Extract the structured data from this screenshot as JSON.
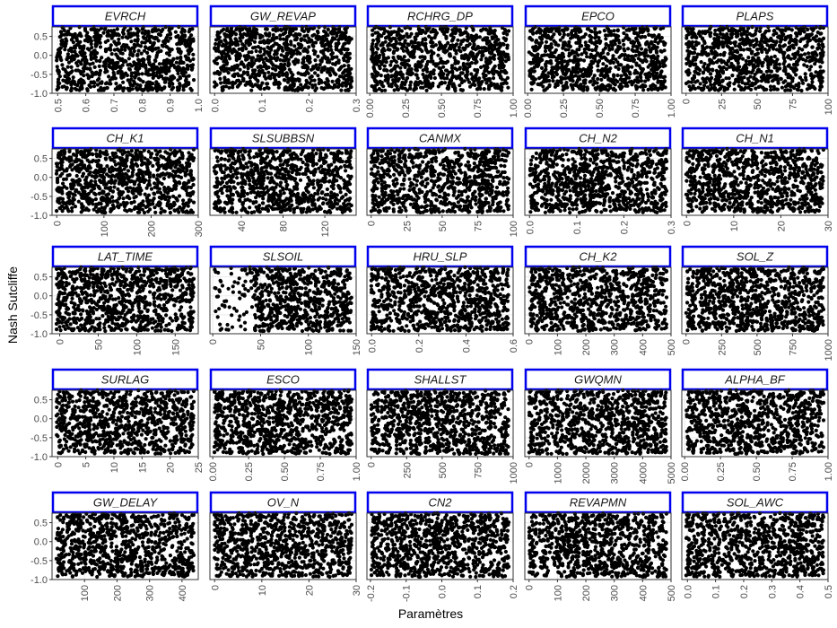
{
  "axis_titles": {
    "y": "Nash Sutcliffe",
    "x": "Paramètres"
  },
  "colors": {
    "strip_border": "#0000ee",
    "points": "#000000",
    "panel_border": "#333333",
    "grid": "#ebebeb",
    "tick_text": "#4d4d4d"
  },
  "chart_data": {
    "type": "scatter",
    "layout": "facet grid, 5 rows x 5 columns",
    "ylim": [
      -1.0,
      0.75
    ],
    "y_ticks": [
      0.5,
      0.0,
      -0.5,
      -1.0
    ],
    "y_tick_labels": [
      "0.5",
      "0.0",
      "-0.5",
      "-1.0"
    ],
    "grid": true,
    "point_color": "#000000",
    "series_note_points": "dense uniform cloud of points spanning each parameter range with Nash Sutcliffe values between about -0.95 and 0.75",
    "panels": [
      {
        "name": "EVRCH",
        "xlim": [
          0.48,
          1.0
        ],
        "x_ticks": [
          0.5,
          0.6,
          0.7,
          0.8,
          0.9,
          1.0
        ],
        "x_tick_labels": [
          "0.5",
          "0.6",
          "0.7",
          "0.8",
          "0.9",
          "1.0"
        ]
      },
      {
        "name": "GW_REVAP",
        "xlim": [
          -0.01,
          0.3
        ],
        "x_ticks": [
          0.0,
          0.1,
          0.2,
          0.3
        ],
        "x_tick_labels": [
          "0.0",
          "0.1",
          "0.2",
          "0.3"
        ]
      },
      {
        "name": "RCHRG_DP",
        "xlim": [
          -0.02,
          1.0
        ],
        "x_ticks": [
          0.0,
          0.25,
          0.5,
          0.75,
          1.0
        ],
        "x_tick_labels": [
          "0.00",
          "0.25",
          "0.50",
          "0.75",
          "1.00"
        ]
      },
      {
        "name": "EPCO",
        "xlim": [
          -0.02,
          1.0
        ],
        "x_ticks": [
          0.0,
          0.25,
          0.5,
          0.75,
          1.0
        ],
        "x_tick_labels": [
          "0.00",
          "0.25",
          "0.50",
          "0.75",
          "1.00"
        ]
      },
      {
        "name": "PLAPS",
        "xlim": [
          -3,
          100
        ],
        "x_ticks": [
          0,
          25,
          50,
          75,
          100
        ],
        "x_tick_labels": [
          "0",
          "25",
          "50",
          "75",
          "100"
        ]
      },
      {
        "name": "CH_K1",
        "xlim": [
          -10,
          300
        ],
        "x_ticks": [
          0,
          100,
          200,
          300
        ],
        "x_tick_labels": [
          "0",
          "100",
          "200",
          "300"
        ]
      },
      {
        "name": "SLSUBBSN",
        "xlim": [
          10,
          150
        ],
        "x_ticks": [
          40,
          80,
          120
        ],
        "x_tick_labels": [
          "40",
          "80",
          "120"
        ]
      },
      {
        "name": "CANMX",
        "xlim": [
          -3,
          100
        ],
        "x_ticks": [
          0,
          25,
          50,
          75,
          100
        ],
        "x_tick_labels": [
          "0",
          "25",
          "50",
          "75",
          "100"
        ]
      },
      {
        "name": "CH_N2",
        "xlim": [
          -0.01,
          0.3
        ],
        "x_ticks": [
          0.0,
          0.1,
          0.2,
          0.3
        ],
        "x_tick_labels": [
          "0.0",
          "0.1",
          "0.2",
          "0.3"
        ]
      },
      {
        "name": "CH_N1",
        "xlim": [
          -1,
          30
        ],
        "x_ticks": [
          0,
          10,
          20,
          30
        ],
        "x_tick_labels": [
          "0",
          "10",
          "20",
          "30"
        ]
      },
      {
        "name": "LAT_TIME",
        "xlim": [
          -10,
          180
        ],
        "x_ticks": [
          0,
          50,
          100,
          150
        ],
        "x_tick_labels": [
          "0",
          "50",
          "100",
          "150"
        ]
      },
      {
        "name": "SLSOIL",
        "xlim": [
          -3,
          150
        ],
        "x_ticks": [
          0,
          50,
          100,
          150
        ],
        "x_tick_labels": [
          "0",
          "50",
          "100",
          "150"
        ]
      },
      {
        "name": "HRU_SLP",
        "xlim": [
          -0.02,
          0.6
        ],
        "x_ticks": [
          0.0,
          0.2,
          0.4,
          0.6
        ],
        "x_tick_labels": [
          "0.0",
          "0.2",
          "0.4",
          "0.6"
        ]
      },
      {
        "name": "CH_K2",
        "xlim": [
          -15,
          500
        ],
        "x_ticks": [
          0,
          100,
          200,
          300,
          400,
          500
        ],
        "x_tick_labels": [
          "0",
          "100",
          "200",
          "300",
          "400",
          "500"
        ]
      },
      {
        "name": "SOL_Z",
        "xlim": [
          -30,
          1000
        ],
        "x_ticks": [
          0,
          250,
          500,
          750,
          1000
        ],
        "x_tick_labels": [
          "0",
          "250",
          "500",
          "750",
          "1000"
        ]
      },
      {
        "name": "SURLAG",
        "xlim": [
          -1,
          25
        ],
        "x_ticks": [
          0,
          5,
          10,
          15,
          20,
          25
        ],
        "x_tick_labels": [
          "0",
          "5",
          "10",
          "15",
          "20",
          "25"
        ]
      },
      {
        "name": "ESCO",
        "xlim": [
          -0.02,
          1.0
        ],
        "x_ticks": [
          0.0,
          0.25,
          0.5,
          0.75,
          1.0
        ],
        "x_tick_labels": [
          "0.00",
          "0.25",
          "0.50",
          "0.75",
          "1.00"
        ]
      },
      {
        "name": "SHALLST",
        "xlim": [
          -30,
          1000
        ],
        "x_ticks": [
          0,
          250,
          500,
          750,
          1000
        ],
        "x_tick_labels": [
          "0",
          "250",
          "500",
          "750",
          "1000"
        ]
      },
      {
        "name": "GWQMN",
        "xlim": [
          -150,
          5000
        ],
        "x_ticks": [
          0,
          1000,
          2000,
          3000,
          4000,
          5000
        ],
        "x_tick_labels": [
          "0",
          "1000",
          "2000",
          "3000",
          "4000",
          "5000"
        ]
      },
      {
        "name": "ALPHA_BF",
        "xlim": [
          -0.02,
          1.0
        ],
        "x_ticks": [
          0.0,
          0.25,
          0.5,
          0.75,
          1.0
        ],
        "x_tick_labels": [
          "0.00",
          "0.25",
          "0.50",
          "0.75",
          "1.00"
        ]
      },
      {
        "name": "GW_DELAY",
        "xlim": [
          0,
          450
        ],
        "x_ticks": [
          100,
          200,
          300,
          400
        ],
        "x_tick_labels": [
          "100",
          "200",
          "300",
          "400"
        ]
      },
      {
        "name": "OV_N",
        "xlim": [
          -1,
          30
        ],
        "x_ticks": [
          0,
          10,
          20,
          30
        ],
        "x_tick_labels": [
          "0",
          "10",
          "20",
          "30"
        ]
      },
      {
        "name": "CN2",
        "xlim": [
          -0.21,
          0.2
        ],
        "x_ticks": [
          -0.2,
          -0.1,
          0.0,
          0.1,
          0.2
        ],
        "x_tick_labels": [
          "-0.2",
          "-0.1",
          "0.0",
          "0.1",
          "0.2"
        ]
      },
      {
        "name": "REVAPMN",
        "xlim": [
          -15,
          500
        ],
        "x_ticks": [
          0,
          100,
          200,
          300,
          400,
          500
        ],
        "x_tick_labels": [
          "0",
          "100",
          "200",
          "300",
          "400",
          "500"
        ]
      },
      {
        "name": "SOL_AWC",
        "xlim": [
          -0.02,
          0.5
        ],
        "x_ticks": [
          0.0,
          0.1,
          0.2,
          0.3,
          0.4,
          0.5
        ],
        "x_tick_labels": [
          "0.0",
          "0.1",
          "0.2",
          "0.3",
          "0.4",
          "0.5"
        ]
      }
    ]
  }
}
